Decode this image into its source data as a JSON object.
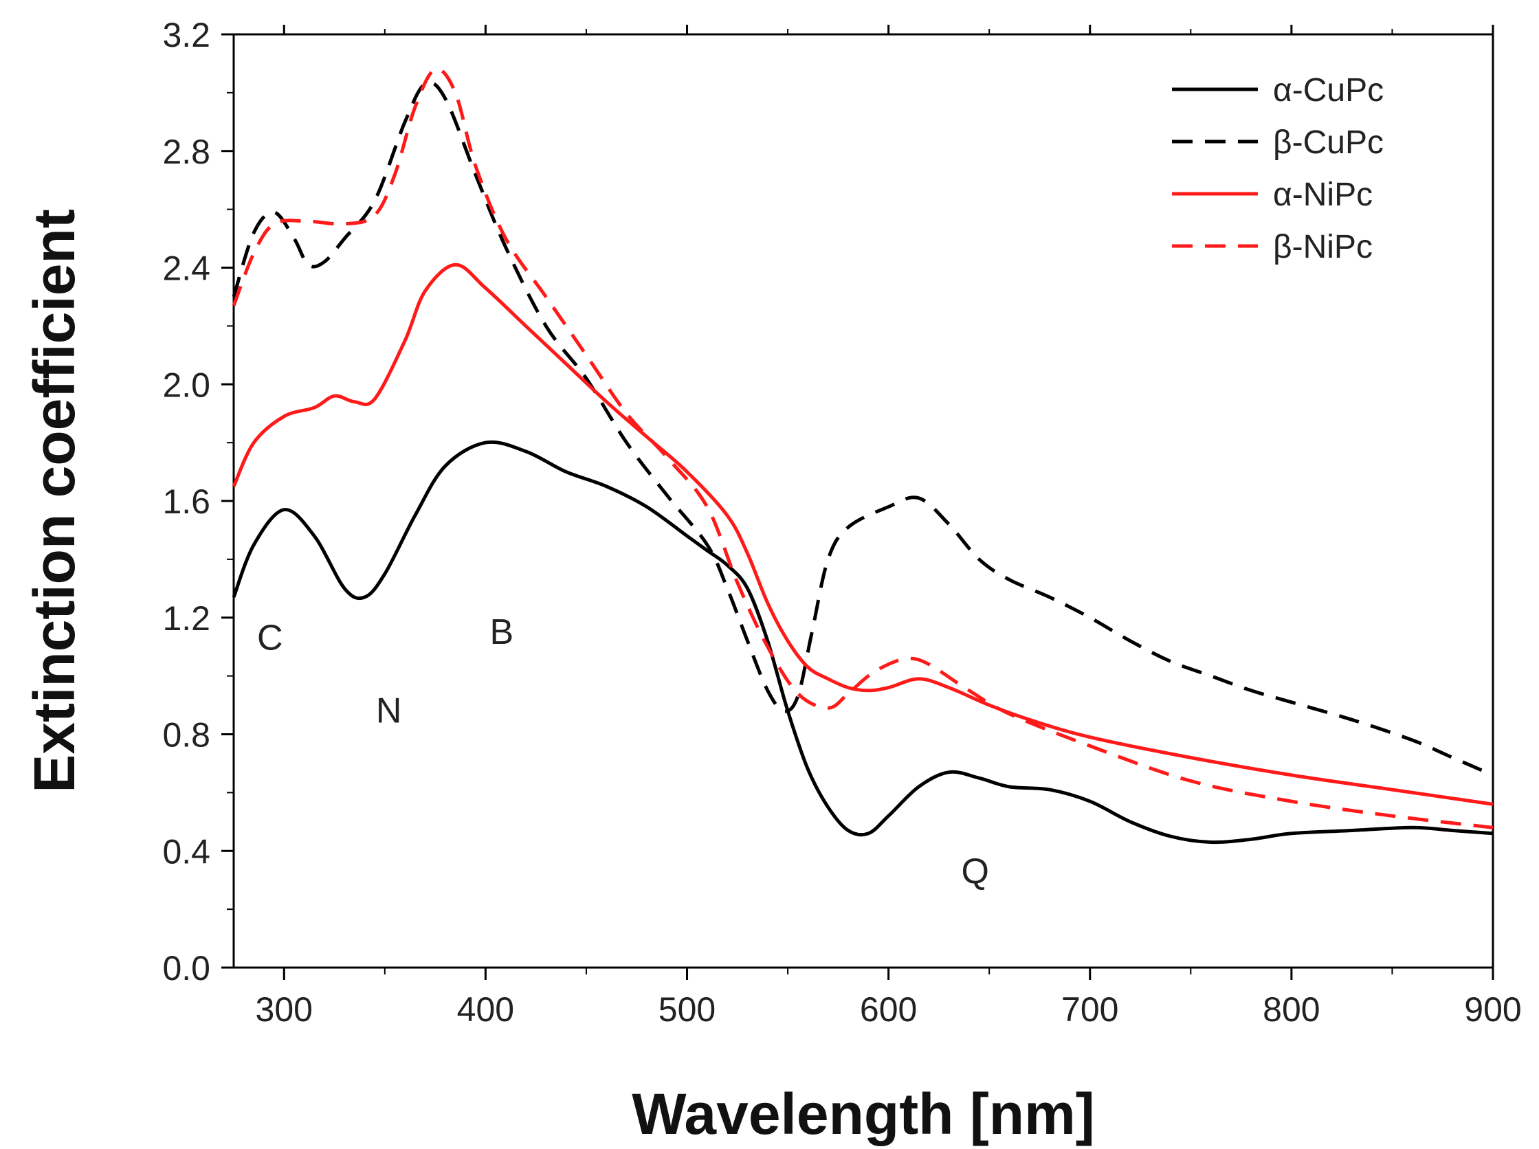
{
  "chart_data": {
    "type": "line",
    "xlabel": "Wavelength [nm]",
    "ylabel": "Extinction coefficient",
    "xlim": [
      275,
      900
    ],
    "ylim": [
      0.0,
      3.2
    ],
    "xticks": [
      "300",
      "400",
      "500",
      "600",
      "700",
      "800",
      "900"
    ],
    "xtick_values": [
      300,
      400,
      500,
      600,
      700,
      800,
      900
    ],
    "yticks": [
      "0.0",
      "0.4",
      "0.8",
      "1.2",
      "1.6",
      "2.0",
      "2.4",
      "2.8",
      "3.2"
    ],
    "ytick_values": [
      0.0,
      0.4,
      0.8,
      1.2,
      1.6,
      2.0,
      2.4,
      2.8,
      3.2
    ],
    "grid": false,
    "legend_position": "top-right",
    "series": [
      {
        "name": "α-CuPc",
        "color": "#000000",
        "style": "solid",
        "x": [
          275,
          285,
          300,
          315,
          330,
          340,
          350,
          365,
          380,
          400,
          420,
          440,
          460,
          480,
          500,
          510,
          520,
          530,
          540,
          550,
          560,
          570,
          580,
          590,
          600,
          615,
          630,
          645,
          660,
          680,
          700,
          720,
          740,
          760,
          780,
          800,
          830,
          860,
          880,
          900
        ],
        "y": [
          1.27,
          1.45,
          1.57,
          1.48,
          1.3,
          1.27,
          1.35,
          1.55,
          1.72,
          1.8,
          1.77,
          1.7,
          1.65,
          1.58,
          1.48,
          1.43,
          1.38,
          1.3,
          1.12,
          0.88,
          0.68,
          0.55,
          0.47,
          0.46,
          0.52,
          0.62,
          0.67,
          0.65,
          0.62,
          0.61,
          0.57,
          0.5,
          0.45,
          0.43,
          0.44,
          0.46,
          0.47,
          0.48,
          0.47,
          0.46
        ]
      },
      {
        "name": "β-CuPc",
        "color": "#000000",
        "style": "dashed",
        "x": [
          275,
          285,
          295,
          305,
          312,
          320,
          330,
          345,
          360,
          370,
          380,
          395,
          410,
          430,
          450,
          470,
          490,
          510,
          520,
          530,
          540,
          548,
          555,
          562,
          570,
          580,
          600,
          615,
          630,
          645,
          660,
          680,
          700,
          720,
          740,
          760,
          780,
          800,
          830,
          860,
          880,
          900
        ],
        "y": [
          2.3,
          2.52,
          2.59,
          2.5,
          2.41,
          2.42,
          2.5,
          2.63,
          2.9,
          3.03,
          2.98,
          2.72,
          2.47,
          2.2,
          2.02,
          1.8,
          1.62,
          1.45,
          1.3,
          1.12,
          0.95,
          0.88,
          0.93,
          1.15,
          1.4,
          1.51,
          1.58,
          1.61,
          1.52,
          1.4,
          1.33,
          1.27,
          1.2,
          1.12,
          1.05,
          1.0,
          0.95,
          0.91,
          0.85,
          0.78,
          0.72,
          0.66
        ]
      },
      {
        "name": "α-NiPc",
        "color": "#ff1a1a",
        "style": "solid",
        "x": [
          275,
          285,
          300,
          315,
          325,
          335,
          345,
          360,
          370,
          385,
          400,
          420,
          440,
          460,
          480,
          500,
          520,
          530,
          540,
          550,
          560,
          570,
          580,
          590,
          600,
          615,
          630,
          650,
          670,
          700,
          750,
          800,
          850,
          900
        ],
        "y": [
          1.65,
          1.8,
          1.89,
          1.92,
          1.96,
          1.94,
          1.95,
          2.15,
          2.32,
          2.41,
          2.33,
          2.2,
          2.07,
          1.94,
          1.82,
          1.7,
          1.55,
          1.42,
          1.25,
          1.12,
          1.03,
          0.99,
          0.96,
          0.95,
          0.96,
          0.99,
          0.96,
          0.9,
          0.85,
          0.79,
          0.72,
          0.66,
          0.61,
          0.56
        ]
      },
      {
        "name": "β-NiPc",
        "color": "#ff1a1a",
        "style": "dashed",
        "x": [
          275,
          285,
          295,
          310,
          330,
          345,
          355,
          365,
          375,
          385,
          395,
          410,
          430,
          450,
          470,
          490,
          510,
          525,
          540,
          555,
          570,
          580,
          590,
          600,
          610,
          620,
          640,
          660,
          700,
          750,
          800,
          850,
          900
        ],
        "y": [
          2.27,
          2.45,
          2.55,
          2.56,
          2.55,
          2.58,
          2.72,
          2.95,
          3.08,
          3.0,
          2.75,
          2.5,
          2.3,
          2.1,
          1.9,
          1.75,
          1.58,
          1.32,
          1.1,
          0.94,
          0.89,
          0.94,
          1.0,
          1.04,
          1.06,
          1.04,
          0.95,
          0.87,
          0.76,
          0.64,
          0.57,
          0.52,
          0.48
        ]
      }
    ],
    "annotations": [
      {
        "text": "C",
        "x": 293,
        "y": 1.09
      },
      {
        "text": "N",
        "x": 352,
        "y": 0.84
      },
      {
        "text": "B",
        "x": 408,
        "y": 1.11
      },
      {
        "text": "Q",
        "x": 643,
        "y": 0.29
      }
    ]
  }
}
